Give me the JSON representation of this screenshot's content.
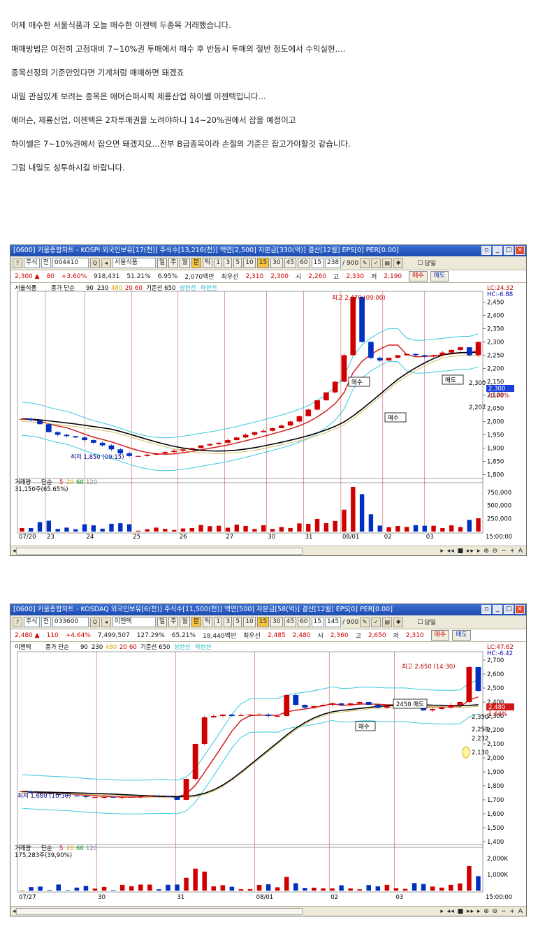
{
  "post": {
    "lines": [
      "어제 매수한 서울식품과 오늘 매수한 이젠텍 두종목 거래했습니다.",
      "매매방법은 여전히 고점대비 7~10%권 투매에서 매수 후 반등시 투매의 절반 정도에서 수익실현....",
      "종목선정의 기준만있다면 기계처럼 매매하면 돼겠죠",
      "내일 관심있게 보려는 종목은 애머슨퍼시픽 제룡산업 하이쎌 이젠텍입니다...",
      "애머슨, 제룡산업, 이젠텍은 2차투매권을 노려야하니 14~20%권에서 잡을 예정이고",
      "하이쎌은 7~10%권에서 잡으면 돼겠지요...전부 B급종목이라 손절의 기준은 잡고가야할것 같습니다.",
      "그럼 내일도 성투하시길 바랍니다."
    ]
  },
  "charts": [
    {
      "title": "[0600] 키움종합차트 - KOSPI 외국인보유[17(천)] 주식수[13,216(천)] 액면[2,500] 자본금[330(억)] 결산[12월] EPS[0] PER[0.00]",
      "toolbar": {
        "type": "주식",
        "prefix": "전",
        "code": "004410",
        "name": "서울식품",
        "periods": [
          "일",
          "주",
          "월",
          "분",
          "틱",
          "1",
          "3",
          "5",
          "10",
          "15",
          "30",
          "45",
          "60",
          "15"
        ],
        "count": "238",
        "total": "/ 900",
        "today": "당일"
      },
      "info": {
        "price": "2,300 ▲",
        "change": "80",
        "rate": "+3.60%",
        "volume": "918,431",
        "vrate": "51.21%",
        "turnover": "6.95%",
        "amount": "2,070백만",
        "best_label": "최우선",
        "ask": "2,310",
        "bid": "2,300",
        "open_label": "시",
        "open": "2,260",
        "high_label": "고",
        "high": "2,330",
        "low_label": "저",
        "low": "2,190",
        "buy": "매수",
        "sell": "매도"
      },
      "legend": [
        "서울식품",
        "종가 단순",
        "90",
        "230",
        "480",
        "20",
        "60",
        "기준선 650",
        "상한선",
        "하한선"
      ],
      "lc": "LC:24.32",
      "hc": "HC:-6.88",
      "vol_legend": [
        "거래량",
        "단순",
        "5",
        "20",
        "60",
        "120"
      ],
      "vol_value": "31,150주(65.65%)",
      "annotations": {
        "max": "최고 2,470 (09:00)",
        "min": "최저 1,850 (09:15)",
        "buy1": "매수",
        "buy2": "매수",
        "sell1": "매도",
        "last": "2,300",
        "pct": "-0.86%",
        "level": "2,207"
      },
      "chart_data": {
        "type": "candlestick",
        "ylim": [
          1780,
          2470
        ],
        "yticks": [
          1800,
          1850,
          1900,
          1950,
          2000,
          2050,
          2100,
          2150,
          2200,
          2250,
          2300,
          2350,
          2400,
          2450
        ],
        "ytick_labels": [
          "1,800",
          "1,850",
          "1,900",
          "1,950",
          "2,000",
          "2,050",
          "2,100",
          "2,150",
          "2,200",
          "2,250",
          "2,300",
          "2,350",
          "2,400",
          "2,450"
        ],
        "x_labels": [
          "07/20",
          "23",
          "24",
          "25",
          "26",
          "27",
          "30",
          "31",
          "08/01",
          "02",
          "03",
          "15:00:00"
        ],
        "vol_ticks": [
          "750,000",
          "500,000",
          "250,000"
        ],
        "price_path": [
          2010,
          2005,
          1990,
          1960,
          1950,
          1945,
          1940,
          1930,
          1920,
          1910,
          1895,
          1880,
          1870,
          1870,
          1875,
          1880,
          1885,
          1890,
          1895,
          1900,
          1910,
          1915,
          1920,
          1930,
          1940,
          1950,
          1960,
          1965,
          1975,
          1985,
          2000,
          2020,
          2045,
          2080,
          2110,
          2150,
          2250,
          2470,
          2300,
          2240,
          2230,
          2240,
          2250,
          2255,
          2250,
          2245,
          2250,
          2260,
          2270,
          2280,
          2250,
          2300
        ]
      }
    },
    {
      "title": "[0600] 키움종합차트 - KOSDAQ 외국인보유[6(천)] 주식수[11,500(천)] 액면[500] 자본금[58(억)] 결산[12월] EPS[0] PER[0.00]",
      "toolbar": {
        "type": "주식",
        "prefix": "전",
        "code": "033600",
        "name": "이젠텍",
        "periods": [
          "일",
          "주",
          "월",
          "분",
          "틱",
          "1",
          "3",
          "5",
          "10",
          "15",
          "30",
          "45",
          "60",
          "15"
        ],
        "count": "145",
        "total": "/ 900",
        "today": "당일"
      },
      "info": {
        "price": "2,480 ▲",
        "change": "110",
        "rate": "+4.64%",
        "volume": "7,499,507",
        "vrate": "127.29%",
        "turnover": "65.21%",
        "amount": "18,440백만",
        "best_label": "최우선",
        "ask": "2,485",
        "bid": "2,480",
        "open_label": "시",
        "open": "2,360",
        "high_label": "고",
        "high": "2,650",
        "low_label": "저",
        "low": "2,310",
        "buy": "매수",
        "sell": "매도"
      },
      "legend": [
        "이젠텍",
        "종가 단순",
        "90",
        "230",
        "480",
        "20",
        "60",
        "기준선 650",
        "상한선",
        "하한선"
      ],
      "lc": "LC:47.62",
      "hc": "HC:-6.42",
      "vol_legend": [
        "거래량",
        "단순",
        "5",
        "20",
        "60",
        "120"
      ],
      "vol_value": "175,283주(39,90%)",
      "annotations": {
        "max": "최고 2,650 (14:30)",
        "min": "최저 1,680 (10:30)",
        "sell1": "2450 매도",
        "buy1": "매수",
        "last": "2,480",
        "pct": "1.64%",
        "l1": "2,350",
        "l2": "2,259",
        "l3": "2,232",
        "l4": "2,130"
      },
      "chart_data": {
        "type": "candlestick",
        "ylim": [
          1380,
          2720
        ],
        "yticks": [
          1400,
          1500,
          1600,
          1700,
          1800,
          1900,
          2000,
          2100,
          2200,
          2300,
          2400,
          2500,
          2600,
          2700
        ],
        "ytick_labels": [
          "1,400",
          "1,500",
          "1,600",
          "1,700",
          "1,800",
          "1,900",
          "2,000",
          "2,100",
          "2,200",
          "2,300",
          "2,400",
          "2,500",
          "2,600",
          "2,700"
        ],
        "x_labels": [
          "07/27",
          "30",
          "31",
          "08/01",
          "02",
          "03",
          "15:00:00"
        ],
        "vol_ticks": [
          "2,000K",
          "1,000K"
        ],
        "price_path": [
          1760,
          1750,
          1745,
          1740,
          1735,
          1730,
          1725,
          1720,
          1720,
          1720,
          1715,
          1720,
          1720,
          1725,
          1730,
          1725,
          1720,
          1700,
          1850,
          2100,
          2290,
          2300,
          2310,
          2300,
          2305,
          2310,
          2310,
          2300,
          2300,
          2450,
          2380,
          2360,
          2370,
          2380,
          2390,
          2380,
          2390,
          2400,
          2380,
          2360,
          2370,
          2380,
          2390,
          2360,
          2340,
          2350,
          2360,
          2380,
          2400,
          2650,
          2480
        ]
      }
    }
  ]
}
